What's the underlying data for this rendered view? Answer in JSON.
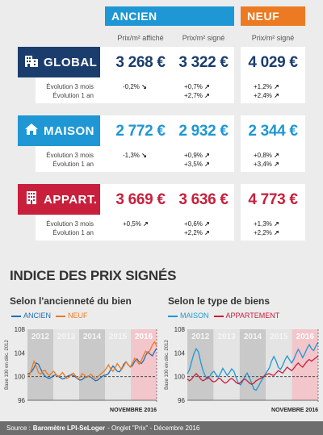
{
  "header": {
    "ancien": "ANCIEN",
    "neuf": "NEUF"
  },
  "columns": {
    "affiche": "Prix/m² affiché",
    "signe_ancien": "Prix/m² signé",
    "signe_neuf": "Prix/m² signé"
  },
  "colors": {
    "ancien": "#1e97d4",
    "neuf": "#ec7a22",
    "global": "#1b3d6e",
    "maison": "#1e97d4",
    "appart": "#c8203c"
  },
  "rows": [
    {
      "label": "GLOBAL",
      "icon": "buildings-icon",
      "affiche": "3 268 €",
      "signe": "3 322 €",
      "neuf": "4 029 €",
      "ev3_label": "Évolution 3 mois",
      "ev1_label": "Évolution 1 an",
      "affiche_3m": "-0,2%",
      "affiche_3m_arrow": "↘",
      "signe_3m": "+0,7%",
      "signe_3m_arrow": "↗",
      "signe_1a": "+2,7%",
      "signe_1a_arrow": "↗",
      "neuf_3m": "+1,2%",
      "neuf_3m_arrow": "↗",
      "neuf_1a": "+2,4%",
      "neuf_1a_arrow": "↗"
    },
    {
      "label": "MAISON",
      "icon": "house-icon",
      "affiche": "2 772 €",
      "signe": "2 932 €",
      "neuf": "2 344 €",
      "ev3_label": "Évolution 3 mois",
      "ev1_label": "Évolution 1 an",
      "affiche_3m": "-1,3%",
      "affiche_3m_arrow": "↘",
      "signe_3m": "+0,9%",
      "signe_3m_arrow": "↗",
      "signe_1a": "+3,5%",
      "signe_1a_arrow": "↗",
      "neuf_3m": "+0,8%",
      "neuf_3m_arrow": "↗",
      "neuf_1a": "+3,4%",
      "neuf_1a_arrow": "↗"
    },
    {
      "label": "APPART.",
      "icon": "apartment-icon",
      "affiche": "3 669 €",
      "signe": "3 636 €",
      "neuf": "4 773 €",
      "ev3_label": "Évolution 3 mois",
      "ev1_label": "Évolution 1 an",
      "affiche_3m": "+0,5%",
      "affiche_3m_arrow": "↗",
      "signe_3m": "+0,6%",
      "signe_3m_arrow": "↗",
      "signe_1a": "+2,2%",
      "signe_1a_arrow": "↗",
      "neuf_3m": "+1,3%",
      "neuf_3m_arrow": "↗",
      "neuf_1a": "+2,2%",
      "neuf_1a_arrow": "↗"
    }
  ],
  "section_title": "INDICE DES PRIX SIGNÉS",
  "chart_data": [
    {
      "type": "line",
      "title": "Selon l'ancienneté du bien",
      "ylabel": "Base 100 en déc. 2012",
      "ylim": [
        96,
        108
      ],
      "yticks": [
        "108",
        "104",
        "100",
        "96"
      ],
      "year_labels": [
        "2012",
        "2013",
        "2014",
        "2015",
        "2016"
      ],
      "footnote": "NOVEMBRE 2016",
      "series": [
        {
          "name": "ANCIEN",
          "color": "#1e6fb5",
          "values": [
            100.4,
            100.6,
            100.9,
            101.5,
            102.3,
            102.1,
            101.3,
            100.6,
            100.1,
            99.8,
            99.7,
            99.9,
            100.2,
            100.3,
            100.1,
            99.8,
            99.6,
            99.7,
            100.0,
            100.2,
            100.3,
            100.2,
            99.9,
            99.6,
            99.4,
            99.5,
            99.8,
            100.0,
            100.1,
            99.9,
            99.6,
            99.3,
            99.4,
            99.7,
            100.0,
            100.2,
            100.3,
            100.5,
            101.2,
            101.8,
            101.4,
            100.9,
            100.8,
            101.3,
            102.1,
            102.5,
            102.0,
            101.6,
            101.9,
            102.6,
            103.0,
            102.5,
            102.2,
            102.7,
            103.6,
            104.2,
            103.8,
            103.5,
            104.2,
            104.8
          ]
        },
        {
          "name": "NEUF",
          "color": "#ec7a22",
          "values": [
            100.0,
            100.3,
            101.4,
            102.6,
            101.8,
            100.7,
            100.4,
            100.9,
            101.1,
            100.5,
            100.2,
            100.6,
            100.9,
            100.4,
            100.0,
            100.3,
            100.7,
            100.2,
            99.7,
            99.9,
            100.4,
            100.6,
            100.1,
            99.6,
            99.9,
            100.5,
            100.3,
            99.8,
            100.1,
            100.4,
            100.0,
            99.7,
            99.9,
            100.3,
            100.6,
            100.9,
            101.4,
            102.0,
            101.3,
            100.9,
            101.5,
            102.2,
            101.7,
            101.2,
            101.8,
            102.5,
            102.0,
            101.6,
            102.4,
            103.1,
            102.6,
            102.1,
            102.7,
            103.6,
            104.3,
            103.9,
            104.5,
            105.3,
            105.9,
            105.2
          ]
        }
      ]
    },
    {
      "type": "line",
      "title": "Selon le type de biens",
      "ylabel": "Base 100 en déc. 2012",
      "ylim": [
        96,
        108
      ],
      "yticks": [
        "108",
        "104",
        "100",
        "96"
      ],
      "year_labels": [
        "2012",
        "2013",
        "2014",
        "2015",
        "2016"
      ],
      "footnote": "NOVEMBRE 2016",
      "series": [
        {
          "name": "MAISON",
          "color": "#1e97d4",
          "values": [
            100.5,
            101.2,
            102.6,
            103.9,
            104.7,
            104.2,
            102.5,
            101.1,
            100.2,
            99.6,
            100.0,
            100.6,
            100.9,
            100.3,
            99.9,
            100.6,
            101.4,
            100.8,
            100.2,
            100.7,
            101.3,
            100.9,
            99.8,
            98.9,
            98.6,
            99.2,
            100.1,
            100.6,
            99.8,
            98.9,
            97.9,
            97.7,
            98.3,
            99.0,
            99.7,
            100.3,
            100.9,
            101.5,
            102.6,
            103.4,
            102.7,
            101.6,
            101.2,
            101.9,
            102.8,
            103.5,
            102.9,
            102.3,
            102.9,
            103.8,
            104.6,
            104.0,
            103.2,
            103.9,
            104.8,
            105.4,
            104.7,
            104.4,
            105.2,
            105.8
          ]
        },
        {
          "name": "APPARTEMENT",
          "color": "#c8203c",
          "values": [
            99.6,
            99.3,
            99.6,
            100.1,
            100.5,
            100.1,
            99.6,
            99.3,
            99.5,
            99.9,
            99.7,
            99.3,
            99.1,
            99.3,
            99.7,
            99.6,
            99.2,
            98.9,
            99.1,
            99.5,
            99.7,
            99.4,
            99.0,
            98.8,
            99.0,
            99.4,
            99.6,
            99.3,
            98.9,
            98.7,
            98.9,
            99.3,
            99.5,
            99.7,
            99.9,
            100.2,
            100.4,
            100.5,
            100.3,
            100.2,
            100.6,
            101.0,
            100.8,
            100.6,
            101.1,
            101.6,
            101.3,
            101.0,
            101.4,
            101.9,
            102.3,
            101.9,
            101.6,
            102.1,
            102.6,
            102.9,
            102.6,
            102.9,
            103.2,
            103.5
          ]
        }
      ]
    }
  ],
  "footer": {
    "prefix": "Source :",
    "source": "Baromètre LPI-SeLoger",
    "suffix": "- Onglet \"Prix\" - Décembre 2016"
  }
}
